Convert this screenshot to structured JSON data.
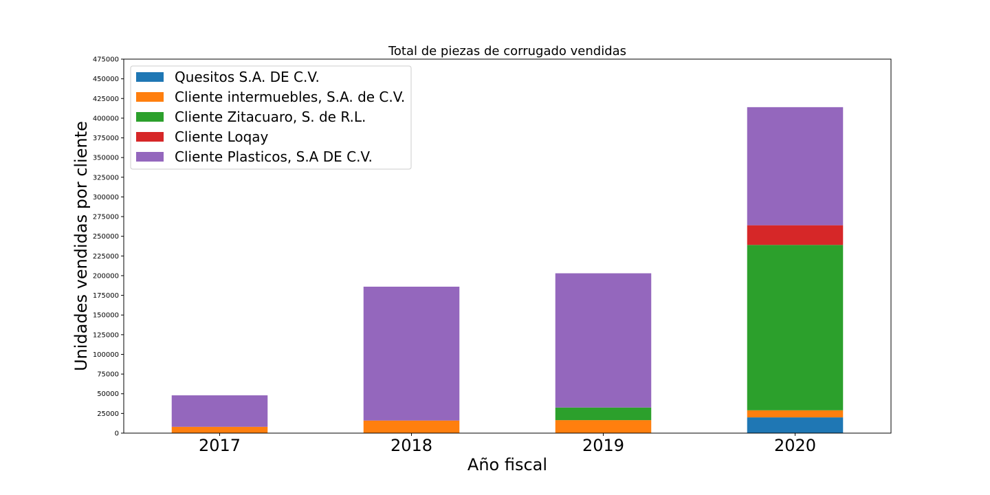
{
  "chart_data": {
    "type": "bar",
    "stacked": true,
    "title": "Total de piezas de corrugado vendidas",
    "xlabel": "Año fiscal",
    "ylabel": "Unidades vendidas por cliente",
    "categories": [
      "2017",
      "2018",
      "2019",
      "2020"
    ],
    "ylim": [
      0,
      475000
    ],
    "yticks": [
      0,
      25000,
      50000,
      75000,
      100000,
      125000,
      150000,
      175000,
      200000,
      225000,
      250000,
      275000,
      300000,
      325000,
      350000,
      375000,
      400000,
      425000,
      450000,
      475000
    ],
    "grid": false,
    "legend_position": "top-left",
    "series": [
      {
        "name": "Quesitos S.A. DE C.V.",
        "color": "#1f77b4",
        "values": [
          0,
          0,
          0,
          20000
        ]
      },
      {
        "name": "Cliente intermuebles, S.A. de C.V.",
        "color": "#ff7f0e",
        "values": [
          8000,
          16000,
          16500,
          9000
        ]
      },
      {
        "name": "Cliente Zitacuaro, S. de R.L.",
        "color": "#2ca02c",
        "values": [
          0,
          0,
          16000,
          210000
        ]
      },
      {
        "name": "Cliente Loqay",
        "color": "#d62728",
        "values": [
          0,
          0,
          0,
          25000
        ]
      },
      {
        "name": "Cliente Plasticos, S.A DE C.V.",
        "color": "#9467bd",
        "values": [
          40000,
          170000,
          170500,
          150000
        ]
      }
    ]
  }
}
